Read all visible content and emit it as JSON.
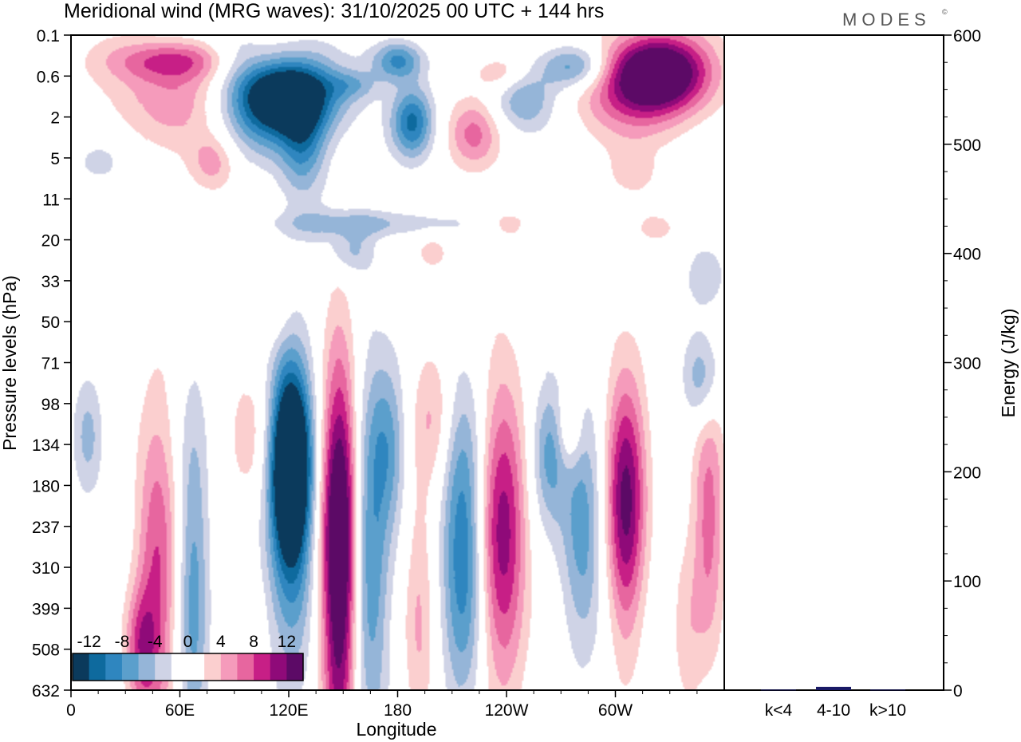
{
  "brand": "MODES",
  "brand_mark": "©",
  "chart_data": [
    {
      "type": "heatmap",
      "title": "Meridional wind (MRG waves):  31/10/2025  00 UTC  + 144 hrs",
      "xlabel": "Longitude",
      "ylabel": "Pressure levels (hPa)",
      "x_ticks": [
        "0",
        "60E",
        "120E",
        "180",
        "120W",
        "60W"
      ],
      "x_tick_values": [
        0,
        60,
        120,
        180,
        240,
        300
      ],
      "xlim": [
        0,
        360
      ],
      "y_ticks": [
        "0.1",
        "0.6",
        "2",
        "5",
        "11",
        "20",
        "33",
        "50",
        "71",
        "98",
        "134",
        "180",
        "237",
        "310",
        "399",
        "508",
        "632"
      ],
      "colorbar": {
        "tick_labels": [
          "-12",
          "-8",
          "-4",
          "0",
          "4",
          "8",
          "12"
        ],
        "levels": [
          -14,
          -12,
          -10,
          -8,
          -6,
          -4,
          -2,
          0,
          2,
          4,
          6,
          8,
          10,
          12,
          14
        ],
        "colors": [
          "#0b3a5c",
          "#0e6a9e",
          "#2f86bf",
          "#5b9fcc",
          "#95b5d8",
          "#cfd3e6",
          "#ffffff",
          "#ffffff",
          "#fbcfcf",
          "#f59bbb",
          "#e7669f",
          "#c71f86",
          "#8f0a79",
          "#5c0a66"
        ]
      },
      "blobs": [
        {
          "lon": 121,
          "lev": 10.5,
          "w": 7,
          "h": 1.4,
          "v": -15
        },
        {
          "lon": 121,
          "lev": 11.3,
          "w": 9,
          "h": 2.8,
          "v": -11
        },
        {
          "lon": 148,
          "lev": 13.8,
          "w": 7,
          "h": 3.4,
          "v": 12
        },
        {
          "lon": 148,
          "lev": 11.3,
          "w": 7,
          "h": 2.6,
          "v": 8
        },
        {
          "lon": 164,
          "lev": 13.0,
          "w": 8,
          "h": 3.2,
          "v": -8
        },
        {
          "lon": 175,
          "lev": 10.0,
          "w": 7,
          "h": 1.4,
          "v": -6
        },
        {
          "lon": 216,
          "lev": 12.5,
          "w": 8,
          "h": 2.6,
          "v": -10
        },
        {
          "lon": 238,
          "lev": 12.2,
          "w": 9,
          "h": 2.6,
          "v": 11
        },
        {
          "lon": 264,
          "lev": 10.2,
          "w": 7,
          "h": 1.2,
          "v": -7
        },
        {
          "lon": 282,
          "lev": 12.0,
          "w": 8,
          "h": 2.2,
          "v": -7
        },
        {
          "lon": 306,
          "lev": 10.6,
          "w": 8,
          "h": 1.8,
          "v": 9
        },
        {
          "lon": 306,
          "lev": 12.8,
          "w": 7,
          "h": 2.0,
          "v": 6
        },
        {
          "lon": 352,
          "lev": 11.8,
          "w": 6,
          "h": 2.2,
          "v": 7
        },
        {
          "lon": 348,
          "lev": 8.4,
          "w": 7,
          "h": 0.8,
          "v": -6
        },
        {
          "lon": 47,
          "lev": 13.2,
          "w": 8,
          "h": 3.0,
          "v": 8
        },
        {
          "lon": 38,
          "lev": 15.0,
          "w": 6,
          "h": 1.0,
          "v": 7
        },
        {
          "lon": 67,
          "lev": 13.5,
          "w": 6,
          "h": 3.2,
          "v": -7
        },
        {
          "lon": 98,
          "lev": 9.8,
          "w": 8,
          "h": 1.2,
          "v": 3
        },
        {
          "lon": 192,
          "lev": 14.3,
          "w": 6,
          "h": 2.6,
          "v": 4
        },
        {
          "lon": 200,
          "lev": 9.3,
          "w": 8,
          "h": 1.2,
          "v": 4
        },
        {
          "lon": 9,
          "lev": 9.8,
          "w": 6,
          "h": 1.0,
          "v": -5
        },
        {
          "lon": 340,
          "lev": 14.5,
          "w": 6,
          "h": 1.8,
          "v": 3
        },
        {
          "lon": 275,
          "lev": 9.6,
          "w": 5,
          "h": 0.7,
          "v": 5
        },
        {
          "lon": 110,
          "lev": 6.8,
          "w": 10,
          "h": 0.6,
          "v": 3
        },
        {
          "lon": 118,
          "lev": 1.4,
          "w": 20,
          "h": 0.6,
          "v": -13
        },
        {
          "lon": 110,
          "lev": 1.8,
          "w": 24,
          "h": 0.8,
          "v": -9
        },
        {
          "lon": 128,
          "lev": 2.7,
          "w": 9,
          "h": 0.9,
          "v": -7
        },
        {
          "lon": 90,
          "lev": 0.5,
          "w": 12,
          "h": 0.5,
          "v": -4
        },
        {
          "lon": 65,
          "lev": 1.5,
          "w": 32,
          "h": 0.8,
          "v": 6
        },
        {
          "lon": 58,
          "lev": 0.6,
          "w": 26,
          "h": 0.35,
          "v": 7
        },
        {
          "lon": 188,
          "lev": 2.1,
          "w": 8,
          "h": 0.6,
          "v": -10
        },
        {
          "lon": 180,
          "lev": 0.6,
          "w": 10,
          "h": 0.35,
          "v": -9
        },
        {
          "lon": 278,
          "lev": 0.75,
          "w": 14,
          "h": 0.4,
          "v": -9
        },
        {
          "lon": 250,
          "lev": 1.6,
          "w": 12,
          "h": 0.5,
          "v": -6
        },
        {
          "lon": 324,
          "lev": 0.9,
          "w": 18,
          "h": 0.6,
          "v": 13
        },
        {
          "lon": 314,
          "lev": 1.2,
          "w": 26,
          "h": 0.9,
          "v": 8
        },
        {
          "lon": 222,
          "lev": 2.4,
          "w": 10,
          "h": 0.6,
          "v": 6
        },
        {
          "lon": 78,
          "lev": 3.1,
          "w": 9,
          "h": 0.5,
          "v": 5
        },
        {
          "lon": 160,
          "lev": 4.6,
          "w": 35,
          "h": 0.25,
          "v": -5
        },
        {
          "lon": 310,
          "lev": 3.4,
          "w": 9,
          "h": 0.4,
          "v": 3
        },
        {
          "lon": 236,
          "lev": 0.9,
          "w": 10,
          "h": 0.3,
          "v": 4
        },
        {
          "lon": 155,
          "lev": 1.2,
          "w": 10,
          "h": 0.25,
          "v": -4
        },
        {
          "lon": 320,
          "lev": 4.7,
          "w": 10,
          "h": 0.35,
          "v": 3
        },
        {
          "lon": 240,
          "lev": 4.6,
          "w": 9,
          "h": 0.3,
          "v": 3
        },
        {
          "lon": 155,
          "lev": 5.3,
          "w": 9,
          "h": 0.35,
          "v": -4
        },
        {
          "lon": 350,
          "lev": 5.8,
          "w": 8,
          "h": 0.6,
          "v": -4
        },
        {
          "lon": 200,
          "lev": 5.3,
          "w": 6,
          "h": 0.3,
          "v": 3
        },
        {
          "lon": 15,
          "lev": 3.1,
          "w": 8,
          "h": 0.3,
          "v": -3
        }
      ]
    },
    {
      "type": "bar",
      "ylabel": "Energy (J/kg)",
      "categories": [
        "k<4",
        "4-10",
        "k>10"
      ],
      "values": [
        0.5,
        3,
        0.5
      ],
      "ylim": [
        0,
        600
      ],
      "y_ticks": [
        "0",
        "100",
        "200",
        "300",
        "400",
        "500",
        "600"
      ],
      "bar_color": "#1a1a66"
    }
  ]
}
